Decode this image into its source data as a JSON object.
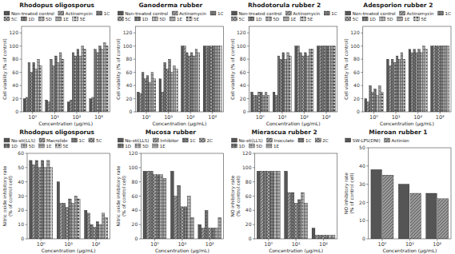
{
  "chart_data": [
    {
      "type": "bar",
      "title": "Rhodopus oligosporus",
      "ylabel": "Cell viability (% of control)",
      "xlabel": "Concentration (μg/mL)",
      "categories": [
        "10⁰",
        "10¹",
        "10²",
        "10³"
      ],
      "ylim": [
        0,
        130
      ],
      "yticks": [
        0,
        20,
        40,
        60,
        80,
        100,
        120
      ],
      "grid": false,
      "legend": "top",
      "series": [
        {
          "name": "Non-treated control",
          "color": "#555555",
          "values": [
            20,
            18,
            15,
            20
          ]
        },
        {
          "name": "Actinomycin",
          "color": "#999999",
          "values": [
            22,
            15,
            18,
            22
          ]
        },
        {
          "name": "1C",
          "color": "#777777",
          "values": [
            75,
            80,
            90,
            95
          ]
        },
        {
          "name": "5C",
          "color": "#aaaaaa",
          "values": [
            60,
            70,
            85,
            90
          ]
        },
        {
          "name": "1D",
          "color": "#888888",
          "values": [
            75,
            85,
            95,
            100
          ]
        },
        {
          "name": "5D",
          "color": "#bbbbbb",
          "values": [
            65,
            75,
            85,
            95
          ]
        },
        {
          "name": "1E",
          "color": "#aaaaaa",
          "values": [
            80,
            90,
            100,
            105
          ]
        },
        {
          "name": "5E",
          "color": "#cccccc",
          "values": [
            70,
            80,
            95,
            100
          ]
        }
      ]
    },
    {
      "type": "bar",
      "title": "Ganoderma rubber",
      "ylabel": "Cell viability (% of control)",
      "xlabel": "Concentration (μg/mL)",
      "categories": [
        "10⁰",
        "10¹",
        "10²",
        "10³"
      ],
      "ylim": [
        0,
        130
      ],
      "yticks": [
        0,
        20,
        40,
        60,
        80,
        100,
        120
      ],
      "grid": false,
      "legend": "top",
      "series": [
        {
          "name": "Non-treated control",
          "color": "#555555",
          "values": [
            30,
            50,
            100,
            100
          ]
        },
        {
          "name": "Actinomycin",
          "color": "#999999",
          "values": [
            28,
            30,
            100,
            100
          ]
        },
        {
          "name": "1C",
          "color": "#777777",
          "values": [
            60,
            75,
            90,
            100
          ]
        },
        {
          "name": "5C",
          "color": "#aaaaaa",
          "values": [
            50,
            65,
            85,
            100
          ]
        },
        {
          "name": "1D",
          "color": "#888888",
          "values": [
            55,
            80,
            90,
            100
          ]
        },
        {
          "name": "5D",
          "color": "#bbbbbb",
          "values": [
            45,
            60,
            85,
            100
          ]
        },
        {
          "name": "1E",
          "color": "#aaaaaa",
          "values": [
            60,
            70,
            95,
            100
          ]
        },
        {
          "name": "5E",
          "color": "#cccccc",
          "values": [
            50,
            65,
            90,
            100
          ]
        }
      ]
    },
    {
      "type": "bar",
      "title": "Rhodotorula rubber 2",
      "ylabel": "Cell viability (% of control)",
      "xlabel": "Concentration (μg/mL)",
      "categories": [
        "10⁰",
        "10¹",
        "10²",
        "10³"
      ],
      "ylim": [
        0,
        130
      ],
      "yticks": [
        0,
        20,
        40,
        60,
        80,
        100,
        120
      ],
      "grid": false,
      "legend": "top",
      "series": [
        {
          "name": "Non-treated control",
          "color": "#555555",
          "values": [
            30,
            30,
            100,
            100
          ]
        },
        {
          "name": "Actinomycin",
          "color": "#999999",
          "values": [
            25,
            25,
            100,
            100
          ]
        },
        {
          "name": "1C",
          "color": "#777777",
          "values": [
            25,
            85,
            90,
            100
          ]
        },
        {
          "name": "5C",
          "color": "#aaaaaa",
          "values": [
            30,
            80,
            85,
            100
          ]
        },
        {
          "name": "1D",
          "color": "#888888",
          "values": [
            30,
            90,
            90,
            100
          ]
        },
        {
          "name": "5D",
          "color": "#bbbbbb",
          "values": [
            25,
            80,
            85,
            100
          ]
        },
        {
          "name": "1E",
          "color": "#aaaaaa",
          "values": [
            30,
            90,
            95,
            100
          ]
        },
        {
          "name": "5E",
          "color": "#cccccc",
          "values": [
            25,
            85,
            95,
            100
          ]
        }
      ]
    },
    {
      "type": "bar",
      "title": "Adesporion rubber 2",
      "ylabel": "Cell viability (% of control)",
      "xlabel": "Concentration (μg/mL)",
      "categories": [
        "10⁰",
        "10¹",
        "10²",
        "10³"
      ],
      "ylim": [
        0,
        130
      ],
      "yticks": [
        0,
        20,
        40,
        60,
        80,
        100,
        120
      ],
      "grid": false,
      "legend": "top",
      "series": [
        {
          "name": "Non-treated control",
          "color": "#555555",
          "values": [
            20,
            80,
            95,
            100
          ]
        },
        {
          "name": "Actinomycin",
          "color": "#999999",
          "values": [
            15,
            70,
            90,
            100
          ]
        },
        {
          "name": "1C",
          "color": "#777777",
          "values": [
            40,
            80,
            95,
            100
          ]
        },
        {
          "name": "5C",
          "color": "#aaaaaa",
          "values": [
            30,
            75,
            90,
            100
          ]
        },
        {
          "name": "1D",
          "color": "#888888",
          "values": [
            35,
            85,
            95,
            100
          ]
        },
        {
          "name": "5D",
          "color": "#bbbbbb",
          "values": [
            25,
            80,
            90,
            100
          ]
        },
        {
          "name": "1E",
          "color": "#aaaaaa",
          "values": [
            40,
            90,
            100,
            100
          ]
        },
        {
          "name": "5E",
          "color": "#cccccc",
          "values": [
            30,
            80,
            95,
            100
          ]
        }
      ]
    },
    {
      "type": "bar",
      "title": "Rhodopus oligosporus",
      "ylabel": "Nitric oxide inhibitory rate\n(% of control cell)",
      "xlabel": "Concentration (μg/mL)",
      "categories": [
        "10⁰",
        "10¹",
        "10²"
      ],
      "ylim": [
        0,
        60
      ],
      "yticks": [
        0,
        10,
        20,
        30,
        40,
        50,
        60
      ],
      "grid": false,
      "legend": "top",
      "series": [
        {
          "name": "No-sti(LLS)",
          "color": "#555555",
          "values": [
            55,
            40,
            20
          ]
        },
        {
          "name": "Macrolide",
          "color": "#999999",
          "values": [
            52,
            25,
            18
          ]
        },
        {
          "name": "1C",
          "color": "#777777",
          "values": [
            55,
            25,
            10
          ]
        },
        {
          "name": "5C",
          "color": "#aaaaaa",
          "values": [
            50,
            22,
            8
          ]
        },
        {
          "name": "1D",
          "color": "#888888",
          "values": [
            55,
            28,
            12
          ]
        },
        {
          "name": "5D",
          "color": "#bbbbbb",
          "values": [
            50,
            25,
            10
          ]
        },
        {
          "name": "1E",
          "color": "#aaaaaa",
          "values": [
            55,
            30,
            18
          ]
        },
        {
          "name": "5E",
          "color": "#cccccc",
          "values": [
            50,
            28,
            15
          ]
        }
      ]
    },
    {
      "type": "bar",
      "title": "Mucosa rubber",
      "ylabel": "Nitric oxide inhibitory rate\n(% of control cell)",
      "xlabel": "Concentration (μg/mL)",
      "categories": [
        "10⁰",
        "10¹",
        "10²"
      ],
      "ylim": [
        0,
        120
      ],
      "yticks": [
        0,
        20,
        40,
        60,
        80,
        100,
        120
      ],
      "grid": false,
      "legend": "top",
      "series": [
        {
          "name": "No-sti(LLS)",
          "color": "#555555",
          "values": [
            95,
            95,
            20
          ]
        },
        {
          "name": "Inhibitor",
          "color": "#999999",
          "values": [
            95,
            60,
            15
          ]
        },
        {
          "name": "1C",
          "color": "#777777",
          "values": [
            95,
            75,
            40
          ]
        },
        {
          "name": "2C",
          "color": "#aaaaaa",
          "values": [
            90,
            45,
            15
          ]
        },
        {
          "name": "1D",
          "color": "#888888",
          "values": [
            90,
            45,
            15
          ]
        },
        {
          "name": "5D",
          "color": "#bbbbbb",
          "values": [
            90,
            60,
            15
          ]
        },
        {
          "name": "1E",
          "color": "#aaaaaa",
          "values": [
            85,
            30,
            30
          ]
        }
      ]
    },
    {
      "type": "bar",
      "title": "Mierascua rubber 2",
      "ylabel": "NO inhibitory rate\n(% of control cell)",
      "xlabel": "Concentration (μg/mL)",
      "categories": [
        "10⁰",
        "10¹",
        "10²"
      ],
      "ylim": [
        0,
        120
      ],
      "yticks": [
        0,
        20,
        40,
        60,
        80,
        100,
        120
      ],
      "grid": false,
      "legend": "top",
      "series": [
        {
          "name": "No-sti(LLS)",
          "color": "#555555",
          "values": [
            95,
            95,
            15
          ]
        },
        {
          "name": "Inoculate",
          "color": "#999999",
          "values": [
            95,
            65,
            5
          ]
        },
        {
          "name": "1C",
          "color": "#777777",
          "values": [
            95,
            65,
            5
          ]
        },
        {
          "name": "2C",
          "color": "#aaaaaa",
          "values": [
            95,
            50,
            5
          ]
        },
        {
          "name": "1D",
          "color": "#888888",
          "values": [
            95,
            55,
            5
          ]
        },
        {
          "name": "5D",
          "color": "#bbbbbb",
          "values": [
            95,
            65,
            5
          ]
        },
        {
          "name": "1E",
          "color": "#aaaaaa",
          "values": [
            95,
            50,
            5
          ]
        }
      ]
    },
    {
      "type": "bar",
      "title": "Mieroan rubber 1",
      "ylabel": "NO inhibitory rate\n(% of control cell)",
      "xlabel": "Concentration (μg/mL)",
      "categories": [
        "10⁰",
        "10¹",
        "10²"
      ],
      "ylim": [
        0,
        50
      ],
      "yticks": [
        0,
        10,
        20,
        30,
        40,
        50
      ],
      "grid": false,
      "legend": "top",
      "series": [
        {
          "name": "SW-LPS(DNI)",
          "color": "#555555",
          "values": [
            38,
            30,
            25
          ]
        },
        {
          "name": "Actinion",
          "color": "#999999",
          "values": [
            35,
            25,
            22
          ]
        }
      ]
    }
  ]
}
